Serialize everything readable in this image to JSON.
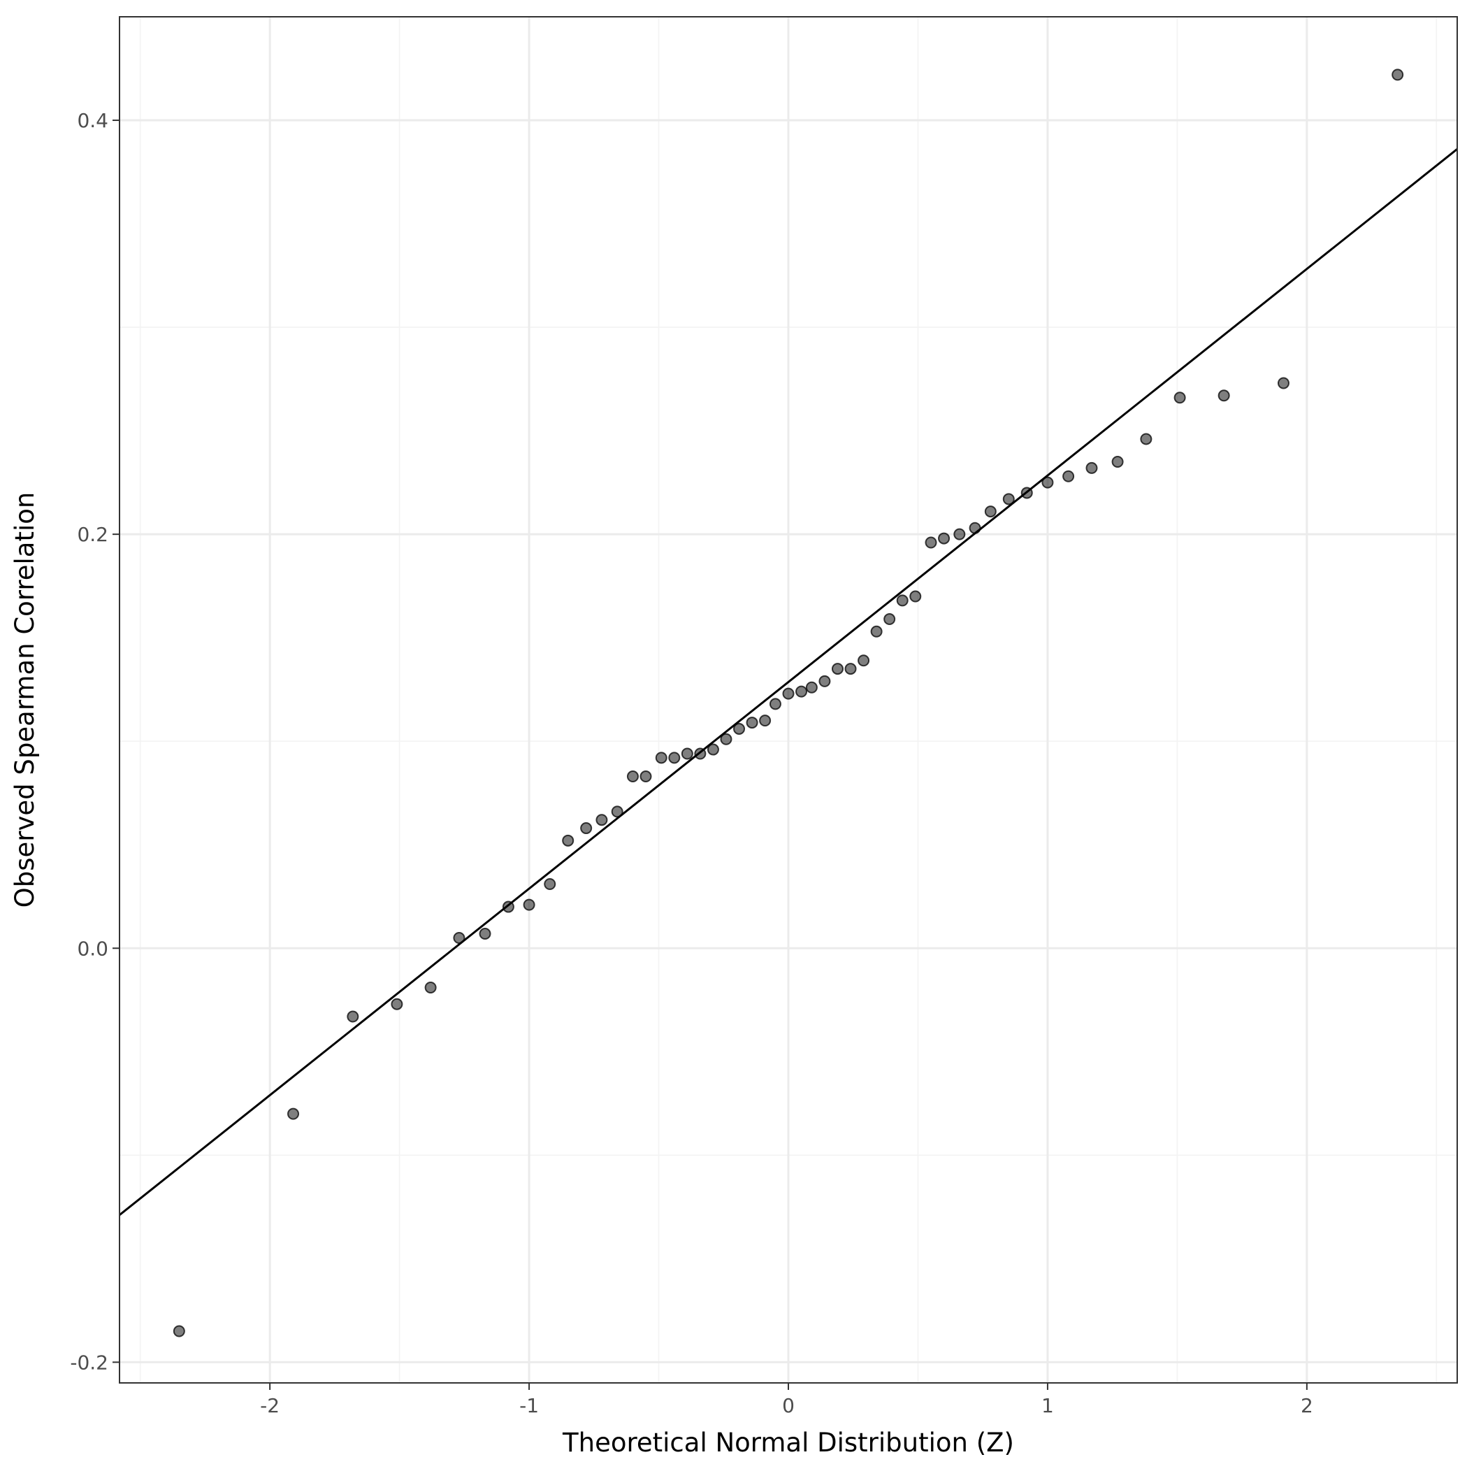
{
  "chart_data": {
    "type": "scatter",
    "title": "",
    "xlabel": "Theoretical Normal Distribution (Z)",
    "ylabel": "Observed Spearman Correlation",
    "xlim": [
      -2.58,
      2.58
    ],
    "ylim": [
      -0.21,
      0.45
    ],
    "x_ticks": [
      -2,
      -1,
      0,
      1,
      2
    ],
    "x_tick_labels": [
      "-2",
      "-1",
      "0",
      "1",
      "2"
    ],
    "y_ticks": [
      -0.2,
      0.0,
      0.2,
      0.4
    ],
    "y_tick_labels": [
      "-0.2",
      "0.0",
      "0.2",
      "0.4"
    ],
    "grid": true,
    "legend": "none",
    "colors": {
      "points": "#000000",
      "points_opacity": 0.5,
      "reference_line": "#000000",
      "grid_major": "#ebebeb",
      "grid_minor": "#f3f3f3",
      "panel_border": "#333333"
    },
    "reference_line": {
      "slope": 0.0998,
      "intercept": 0.1286
    },
    "series": [
      {
        "points": [
          {
            "x": -2.35,
            "y": -0.185
          },
          {
            "x": -1.91,
            "y": -0.08
          },
          {
            "x": -1.68,
            "y": -0.033
          },
          {
            "x": -1.51,
            "y": -0.027
          },
          {
            "x": -1.38,
            "y": -0.019
          },
          {
            "x": -1.27,
            "y": 0.005
          },
          {
            "x": -1.17,
            "y": 0.007
          },
          {
            "x": -1.08,
            "y": 0.02
          },
          {
            "x": -1.0,
            "y": 0.021
          },
          {
            "x": -0.92,
            "y": 0.031
          },
          {
            "x": -0.85,
            "y": 0.052
          },
          {
            "x": -0.78,
            "y": 0.058
          },
          {
            "x": -0.72,
            "y": 0.062
          },
          {
            "x": -0.66,
            "y": 0.066
          },
          {
            "x": -0.6,
            "y": 0.083
          },
          {
            "x": -0.55,
            "y": 0.083
          },
          {
            "x": -0.49,
            "y": 0.092
          },
          {
            "x": -0.44,
            "y": 0.092
          },
          {
            "x": -0.39,
            "y": 0.094
          },
          {
            "x": -0.34,
            "y": 0.094
          },
          {
            "x": -0.29,
            "y": 0.096
          },
          {
            "x": -0.24,
            "y": 0.101
          },
          {
            "x": -0.19,
            "y": 0.106
          },
          {
            "x": -0.14,
            "y": 0.109
          },
          {
            "x": -0.09,
            "y": 0.11
          },
          {
            "x": -0.05,
            "y": 0.118
          },
          {
            "x": 0.0,
            "y": 0.123
          },
          {
            "x": 0.05,
            "y": 0.124
          },
          {
            "x": 0.09,
            "y": 0.126
          },
          {
            "x": 0.14,
            "y": 0.129
          },
          {
            "x": 0.19,
            "y": 0.135
          },
          {
            "x": 0.24,
            "y": 0.135
          },
          {
            "x": 0.29,
            "y": 0.139
          },
          {
            "x": 0.34,
            "y": 0.153
          },
          {
            "x": 0.39,
            "y": 0.159
          },
          {
            "x": 0.44,
            "y": 0.168
          },
          {
            "x": 0.49,
            "y": 0.17
          },
          {
            "x": 0.55,
            "y": 0.196
          },
          {
            "x": 0.6,
            "y": 0.198
          },
          {
            "x": 0.66,
            "y": 0.2
          },
          {
            "x": 0.72,
            "y": 0.203
          },
          {
            "x": 0.78,
            "y": 0.211
          },
          {
            "x": 0.85,
            "y": 0.217
          },
          {
            "x": 0.92,
            "y": 0.22
          },
          {
            "x": 1.0,
            "y": 0.225
          },
          {
            "x": 1.08,
            "y": 0.228
          },
          {
            "x": 1.17,
            "y": 0.232
          },
          {
            "x": 1.27,
            "y": 0.235
          },
          {
            "x": 1.38,
            "y": 0.246
          },
          {
            "x": 1.51,
            "y": 0.266
          },
          {
            "x": 1.68,
            "y": 0.267
          },
          {
            "x": 1.91,
            "y": 0.273
          },
          {
            "x": 2.35,
            "y": 0.422
          }
        ]
      }
    ]
  }
}
